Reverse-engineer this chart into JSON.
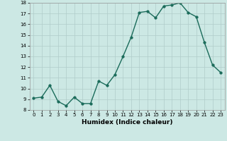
{
  "x": [
    0,
    1,
    2,
    3,
    4,
    5,
    6,
    7,
    8,
    9,
    10,
    11,
    12,
    13,
    14,
    15,
    16,
    17,
    18,
    19,
    20,
    21,
    22,
    23
  ],
  "y": [
    9.1,
    9.2,
    10.3,
    8.8,
    8.4,
    9.2,
    8.6,
    8.6,
    10.7,
    10.3,
    11.3,
    13.0,
    14.8,
    17.1,
    17.2,
    16.6,
    17.7,
    17.8,
    18.0,
    17.1,
    16.7,
    14.3,
    12.2,
    11.5
  ],
  "xlabel": "Humidex (Indice chaleur)",
  "ylim": [
    8,
    18
  ],
  "xlim_min": -0.5,
  "xlim_max": 23.5,
  "yticks": [
    8,
    9,
    10,
    11,
    12,
    13,
    14,
    15,
    16,
    17,
    18
  ],
  "xticks": [
    0,
    1,
    2,
    3,
    4,
    5,
    6,
    7,
    8,
    9,
    10,
    11,
    12,
    13,
    14,
    15,
    16,
    17,
    18,
    19,
    20,
    21,
    22,
    23
  ],
  "line_color": "#1a6b5a",
  "bg_color": "#cce8e4",
  "grid_color": "#b0ccca",
  "marker_size": 2.5,
  "line_width": 1.0,
  "tick_fontsize": 5.0,
  "xlabel_fontsize": 6.5
}
